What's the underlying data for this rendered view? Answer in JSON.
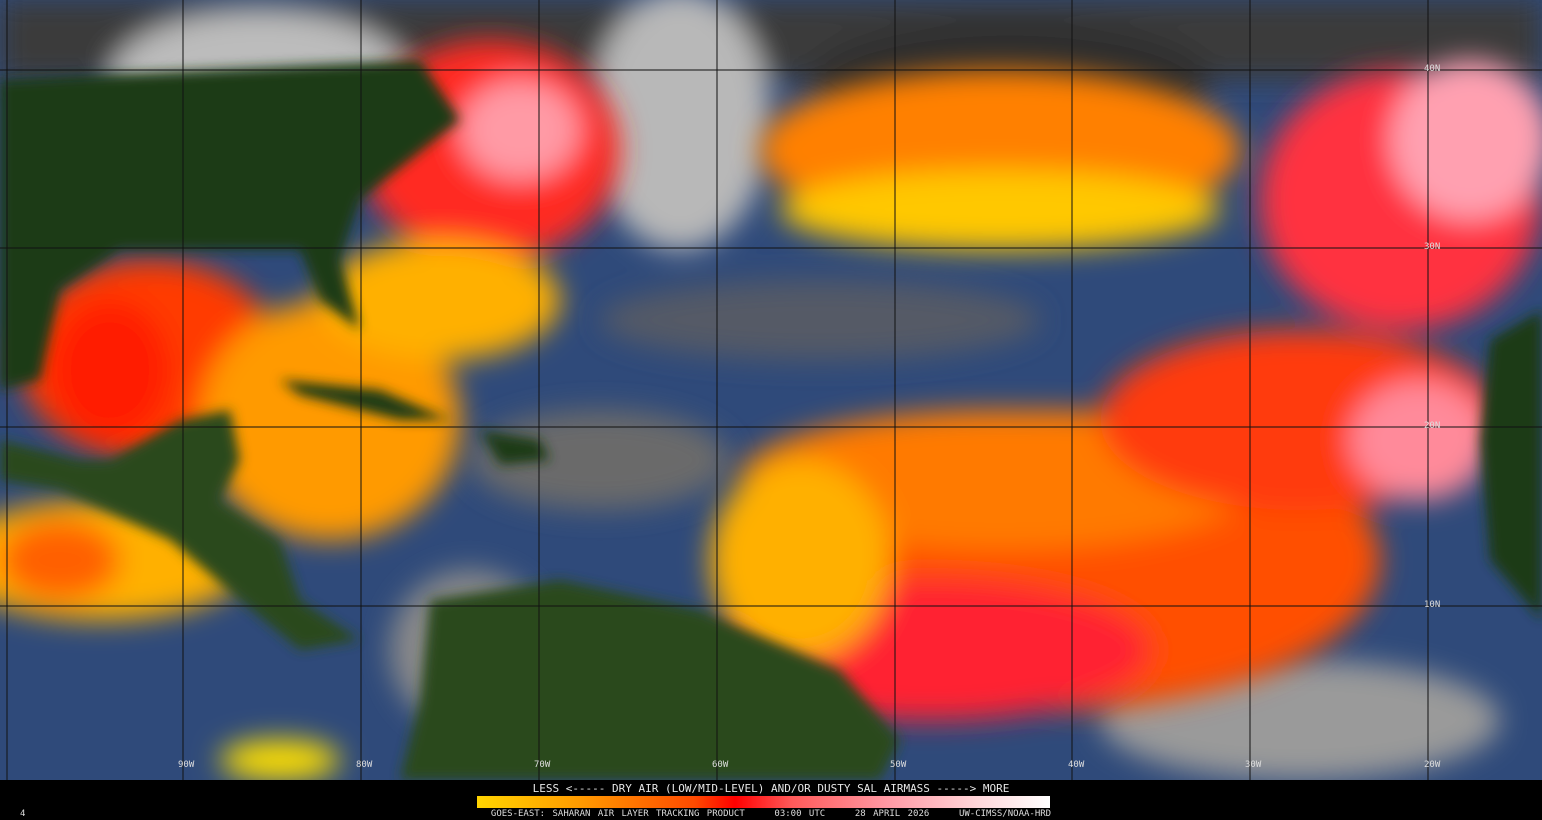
{
  "legend": {
    "title": "LESS <----- DRY AIR (LOW/MID-LEVEL) AND/OR DUSTY SAL AIRMASS -----> MORE",
    "colors": [
      "#ffd400",
      "#ff9a00",
      "#ff4a00",
      "#ff0000",
      "#ff9aa5",
      "#ffffff"
    ]
  },
  "footer": {
    "frame": "4",
    "text": "GOES-EAST: SAHARAN AIR LAYER TRACKING PRODUCT    03:00 UTC    28 APRIL 2026    UW-CIMSS/NOAA-HRD"
  },
  "grid": {
    "longitudes": [
      "90W",
      "80W",
      "70W",
      "60W",
      "50W",
      "40W",
      "30W",
      "20W"
    ],
    "latitudes": [
      "40N",
      "30N",
      "20N",
      "10N"
    ]
  },
  "colors": {
    "ocean": "#2f4a7a",
    "land": "#1f3a14",
    "cloud": "#8a8a8a",
    "sal": "#ff3a00"
  }
}
